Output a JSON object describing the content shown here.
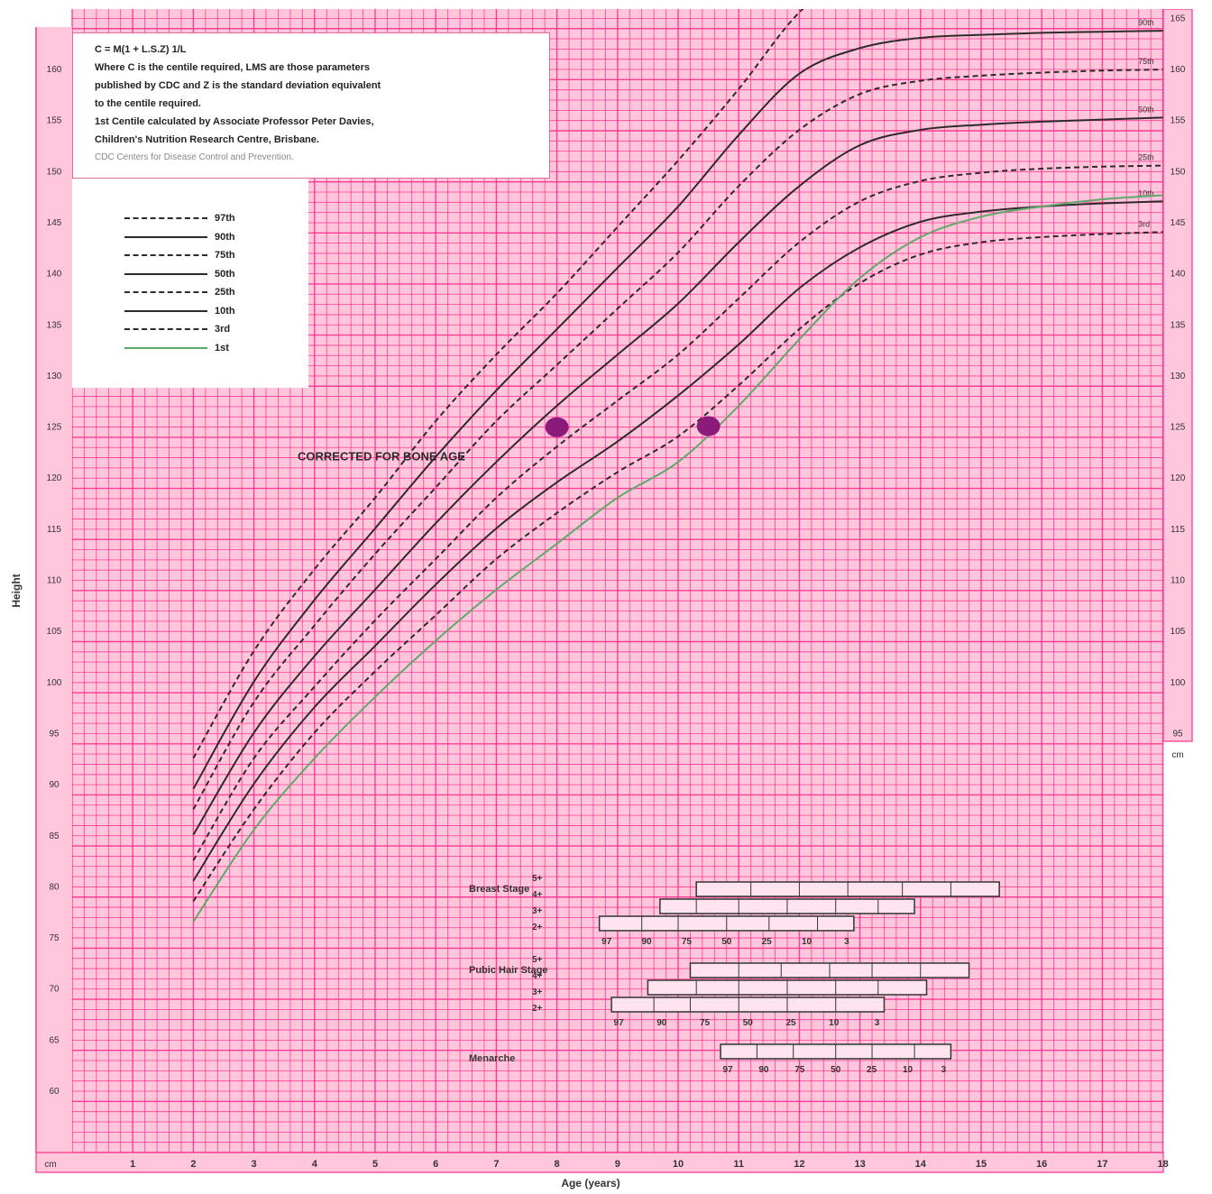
{
  "formula": {
    "lines": [
      "C = M(1 + L.S.Z) 1/L",
      "Where C is the centile required, LMS are those parameters",
      "published by CDC and Z is the standard deviation equivalent",
      "to the centile required.",
      "1st Centile calculated by Associate Professor Peter Davies,",
      "Children's Nutrition Research Centre, Brisbane."
    ],
    "source": "CDC Centers for Disease Control and Prevention."
  },
  "annotation": "CORRECTED FOR BONE AGE",
  "colors": {
    "grid": "#ff2f8e",
    "background": "#ffc6dc",
    "centile": "#2e2a2c",
    "first_centile": "#5fa86a",
    "marker": "#8b1a7a"
  },
  "chart_data": {
    "type": "line",
    "xlabel": "Age (years)",
    "ylabel": "Height",
    "x_unit_label": "cm",
    "xlim": [
      0,
      18
    ],
    "ylim": [
      55,
      165
    ],
    "x_ticks": [
      1,
      2,
      3,
      4,
      5,
      6,
      7,
      8,
      9,
      10,
      11,
      12,
      13,
      14,
      15,
      16,
      17,
      18
    ],
    "y_ticks": [
      60,
      65,
      70,
      75,
      80,
      85,
      90,
      95,
      100,
      105,
      110,
      115,
      120,
      125,
      130,
      135,
      140,
      145,
      150,
      155,
      160
    ],
    "right_y_ticks": [
      95,
      100,
      105,
      110,
      115,
      120,
      125,
      130,
      135,
      140,
      145,
      150,
      155,
      160,
      165
    ],
    "grid": true,
    "legend_position": "top-left",
    "series": [
      {
        "name": "97th",
        "style": "dashed",
        "x": [
          2,
          3,
          4,
          5,
          6,
          7,
          8,
          9,
          10,
          11,
          12,
          13
        ],
        "y": [
          92.5,
          103,
          111,
          118,
          125.5,
          132,
          138,
          144.5,
          151,
          158,
          165.5,
          170
        ]
      },
      {
        "name": "90th",
        "style": "solid",
        "x": [
          2,
          3,
          4,
          5,
          6,
          7,
          8,
          9,
          10,
          11,
          12,
          13,
          14,
          15,
          16,
          17,
          18
        ],
        "y": [
          89.5,
          100,
          108,
          115,
          122,
          128.5,
          134.5,
          140.5,
          146.5,
          153.5,
          159.5,
          162,
          163,
          163.3,
          163.5,
          163.6,
          163.7
        ]
      },
      {
        "name": "75th",
        "style": "dashed",
        "x": [
          2,
          3,
          4,
          5,
          6,
          7,
          8,
          9,
          10,
          11,
          12,
          13,
          14,
          15,
          16,
          17,
          18
        ],
        "y": [
          87.5,
          98,
          105.5,
          112.5,
          119,
          125.5,
          131,
          136.5,
          142,
          148.5,
          154,
          157.5,
          158.8,
          159.3,
          159.6,
          159.8,
          159.9
        ]
      },
      {
        "name": "50th",
        "style": "solid",
        "x": [
          2,
          3,
          4,
          5,
          6,
          7,
          8,
          9,
          10,
          11,
          12,
          13,
          14,
          15,
          16,
          17,
          18
        ],
        "y": [
          85,
          95,
          102.5,
          109,
          115.5,
          121.5,
          127,
          132,
          137,
          143,
          148.5,
          152.5,
          154,
          154.5,
          154.8,
          155,
          155.2
        ]
      },
      {
        "name": "25th",
        "style": "dashed",
        "x": [
          2,
          3,
          4,
          5,
          6,
          7,
          8,
          9,
          10,
          11,
          12,
          13,
          14,
          15,
          16,
          17,
          18
        ],
        "y": [
          82.5,
          92.5,
          99.5,
          106,
          112,
          118,
          123,
          127.5,
          132,
          137.5,
          143,
          147,
          149,
          149.8,
          150.2,
          150.4,
          150.5
        ]
      },
      {
        "name": "10th",
        "style": "solid",
        "x": [
          2,
          3,
          4,
          5,
          6,
          7,
          8,
          9,
          10,
          11,
          12,
          13,
          14,
          15,
          16,
          17,
          18
        ],
        "y": [
          80.5,
          90,
          97.5,
          103.5,
          109.5,
          115,
          119.5,
          123.5,
          128,
          133,
          138.5,
          142.5,
          145,
          146,
          146.5,
          146.8,
          147
        ]
      },
      {
        "name": "3rd",
        "style": "dashed",
        "x": [
          2,
          3,
          4,
          5,
          6,
          7,
          8,
          9,
          10,
          11,
          12,
          13,
          14,
          15,
          16,
          17,
          18
        ],
        "y": [
          78.5,
          87.5,
          95,
          101,
          106.5,
          112,
          116.5,
          120.5,
          124,
          129,
          134.5,
          139,
          141.8,
          143,
          143.5,
          143.8,
          144
        ]
      },
      {
        "name": "1st",
        "style": "solid",
        "color": "first_centile",
        "x": [
          2,
          3,
          4,
          5,
          6,
          7,
          8,
          9,
          10,
          11,
          12,
          13,
          14,
          15,
          16,
          17,
          18
        ],
        "y": [
          76.5,
          85.5,
          92.5,
          98.5,
          104,
          109,
          113.5,
          118,
          121.5,
          127,
          133.5,
          139.5,
          143.5,
          145.5,
          146.5,
          147.2,
          147.6
        ]
      }
    ],
    "points": [
      {
        "x": 8,
        "y": 124.9
      },
      {
        "x": 10.5,
        "y": 125
      }
    ]
  },
  "tanner": {
    "groups": [
      {
        "label": "Breast Stage",
        "stages": [
          "5+",
          "4+",
          "3+",
          "2+"
        ],
        "scale": [
          "97",
          "90",
          "75",
          "50",
          "25",
          "10",
          "3"
        ],
        "bars": [
          {
            "start": 10.3,
            "end": 15.3,
            "ticks": [
              11.2,
              12,
              12.8,
              13.7,
              14.5
            ]
          },
          {
            "start": 9.7,
            "end": 13.9,
            "ticks": [
              10.3,
              11,
              11.8,
              12.6,
              13.3
            ]
          },
          {
            "start": 8.7,
            "end": 12.9,
            "ticks": [
              9.4,
              10,
              10.8,
              11.5,
              12.3
            ]
          }
        ]
      },
      {
        "label": "Pubic Hair Stage",
        "stages": [
          "5+",
          "4+",
          "3+",
          "2+"
        ],
        "scale": [
          "97",
          "90",
          "75",
          "50",
          "25",
          "10",
          "3"
        ],
        "bars": [
          {
            "start": 10.2,
            "end": 14.8,
            "ticks": [
              11,
              11.7,
              12.5,
              13.2,
              14
            ]
          },
          {
            "start": 9.5,
            "end": 14.1,
            "ticks": [
              10.3,
              11,
              11.8,
              12.6,
              13.3
            ]
          },
          {
            "start": 8.9,
            "end": 13.4,
            "ticks": [
              9.6,
              10.2,
              11,
              11.8,
              12.6
            ]
          }
        ]
      },
      {
        "label": "Menarche",
        "stages": [],
        "scale": [
          "97",
          "90",
          "75",
          "50",
          "25",
          "10",
          "3"
        ],
        "bars": [
          {
            "start": 10.7,
            "end": 14.5,
            "ticks": [
              11.3,
              11.9,
              12.6,
              13.2,
              13.9
            ]
          }
        ]
      }
    ]
  }
}
